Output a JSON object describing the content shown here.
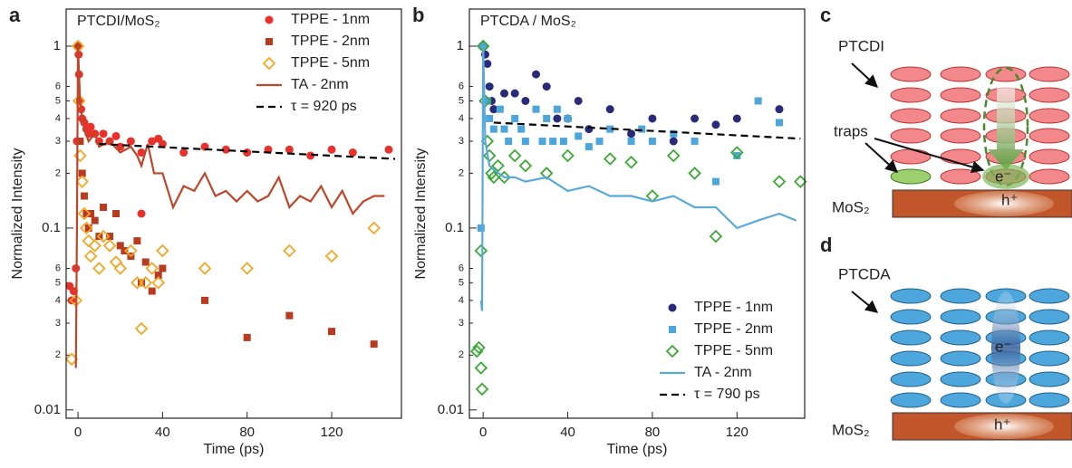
{
  "chart_data": [
    {
      "type": "scatter",
      "panel_label": "a",
      "title": "PTCDI/MoS₂",
      "x_label": "Time (ps)",
      "y_label": "Normalized Intensity",
      "log_y": true,
      "legend": "upper right",
      "xlim": [
        -5.6,
        153
      ],
      "ylim": [
        0.009,
        1.6
      ],
      "xticks": [
        0,
        40,
        80,
        120
      ],
      "yticks": [
        0.01,
        {
          "value": 0.02,
          "label": "2"
        },
        {
          "value": 0.03,
          "label": "3"
        },
        {
          "value": 0.04,
          "label": "4"
        },
        {
          "value": 0.05,
          "label": "5"
        },
        {
          "value": 0.06,
          "label": "6"
        },
        0.1,
        {
          "value": 0.2,
          "label": "2"
        },
        {
          "value": 0.3,
          "label": "3"
        },
        {
          "value": 0.4,
          "label": "4"
        },
        {
          "value": 0.5,
          "label": "5"
        },
        {
          "value": 0.6,
          "label": "6"
        },
        1
      ],
      "series": [
        {
          "name": "TPPE - 1nm",
          "color": "#e8312a",
          "marker": "circle",
          "x": [
            -4,
            -3,
            -2,
            -1,
            -0.5,
            0,
            0.3,
            0.5,
            1,
            1.5,
            2,
            3,
            4,
            5,
            6,
            8,
            10,
            12,
            15,
            18,
            20,
            25,
            30,
            30,
            35,
            38,
            40,
            50,
            60,
            70,
            80,
            90,
            100,
            110,
            120,
            130,
            147
          ],
          "values": [
            0.048,
            0.04,
            0.045,
            0.06,
            0.3,
            1,
            0.9,
            0.7,
            0.5,
            0.45,
            0.4,
            0.38,
            0.35,
            0.33,
            0.36,
            0.33,
            0.3,
            0.33,
            0.3,
            0.32,
            0.28,
            0.3,
            0.26,
            0.12,
            0.3,
            0.31,
            0.29,
            0.26,
            0.28,
            0.27,
            0.26,
            0.27,
            0.27,
            0.25,
            0.27,
            0.26,
            0.27
          ]
        },
        {
          "name": "TPPE - 2nm",
          "color": "#b83b1f",
          "marker": "square",
          "x": [
            0,
            1,
            2,
            3,
            4,
            5,
            6,
            8,
            10,
            12,
            15,
            18,
            20,
            22,
            25,
            28,
            30,
            32,
            35,
            38,
            40,
            60,
            80,
            100,
            120,
            140
          ],
          "values": [
            1,
            0.3,
            0.2,
            0.15,
            0.12,
            0.1,
            0.12,
            0.11,
            0.09,
            0.13,
            0.09,
            0.12,
            0.08,
            0.075,
            0.07,
            0.085,
            0.05,
            0.065,
            0.045,
            0.055,
            0.06,
            0.04,
            0.025,
            0.033,
            0.027,
            0.023
          ]
        },
        {
          "name": "TPPE - 5nm",
          "color": "#f5a623",
          "marker": "diamond",
          "x": [
            -3,
            -1,
            0,
            0.5,
            1,
            2,
            3,
            4,
            5,
            6,
            8,
            10,
            12,
            15,
            18,
            20,
            25,
            28,
            30,
            32,
            35,
            38,
            40,
            60,
            80,
            100,
            120,
            140
          ],
          "values": [
            0.019,
            0.04,
            1,
            0.5,
            0.25,
            0.18,
            0.12,
            0.1,
            0.085,
            0.07,
            0.08,
            0.06,
            0.09,
            0.08,
            0.065,
            0.06,
            0.075,
            0.05,
            0.028,
            0.05,
            0.06,
            0.05,
            0.075,
            0.06,
            0.06,
            0.075,
            0.07,
            0.1
          ]
        },
        {
          "name": "TA - 2nm",
          "color": "#c0462a",
          "marker": "line",
          "x": [
            -1,
            -0.5,
            0,
            0.5,
            1,
            2,
            3,
            5,
            8,
            10,
            15,
            20,
            25,
            28,
            30,
            33,
            36,
            40,
            45,
            50,
            55,
            60,
            65,
            70,
            75,
            80,
            85,
            90,
            95,
            100,
            105,
            110,
            115,
            120,
            125,
            130,
            135,
            140,
            145
          ],
          "values": [
            0.017,
            0.1,
            1,
            0.7,
            0.5,
            0.4,
            0.35,
            0.3,
            0.33,
            0.28,
            0.3,
            0.26,
            0.28,
            0.25,
            0.22,
            0.29,
            0.2,
            0.2,
            0.13,
            0.17,
            0.16,
            0.2,
            0.15,
            0.16,
            0.14,
            0.16,
            0.14,
            0.15,
            0.19,
            0.13,
            0.15,
            0.14,
            0.17,
            0.13,
            0.16,
            0.12,
            0.14,
            0.15,
            0.15
          ]
        },
        {
          "name": "τ = 920 ps",
          "color": "#000000",
          "marker": "dashed",
          "x": [
            10,
            150
          ],
          "values": [
            0.29,
            0.24
          ]
        }
      ]
    },
    {
      "type": "scatter",
      "panel_label": "b",
      "title": "PTCDA / MoS₂",
      "x_label": "Time (ps)",
      "y_label": "Normalized Intensity",
      "log_y": true,
      "legend": "lower right",
      "xlim": [
        -6.5,
        152
      ],
      "ylim": [
        0.009,
        1.6
      ],
      "xticks": [
        0,
        40,
        80,
        120
      ],
      "yticks": [
        0.01,
        {
          "value": 0.02,
          "label": "2"
        },
        {
          "value": 0.03,
          "label": "3"
        },
        {
          "value": 0.04,
          "label": "4"
        },
        {
          "value": 0.05,
          "label": "5"
        },
        {
          "value": 0.06,
          "label": "6"
        },
        0.1,
        {
          "value": 0.2,
          "label": "2"
        },
        {
          "value": 0.3,
          "label": "3"
        },
        {
          "value": 0.4,
          "label": "4"
        },
        {
          "value": 0.5,
          "label": "5"
        },
        {
          "value": 0.6,
          "label": "6"
        },
        1
      ],
      "series": [
        {
          "name": "TPPE - 1nm",
          "color": "#2a2a7a",
          "marker": "circle",
          "x": [
            0,
            1,
            2,
            3,
            4,
            5,
            10,
            15,
            20,
            25,
            30,
            35,
            40,
            45,
            50,
            60,
            70,
            80,
            90,
            100,
            110,
            120,
            140
          ],
          "values": [
            1,
            0.9,
            0.8,
            0.6,
            0.5,
            0.45,
            0.55,
            0.55,
            0.5,
            0.7,
            0.6,
            0.4,
            0.4,
            0.5,
            0.35,
            0.45,
            0.33,
            0.4,
            0.3,
            0.4,
            0.37,
            0.4,
            0.45
          ]
        },
        {
          "name": "TPPE - 2nm",
          "color": "#4ca6dc",
          "marker": "square",
          "x": [
            -1,
            0,
            2,
            3,
            5,
            8,
            10,
            12,
            15,
            18,
            20,
            25,
            28,
            30,
            33,
            35,
            38,
            40,
            45,
            50,
            55,
            60,
            70,
            75,
            80,
            90,
            100,
            110,
            120,
            130,
            140
          ],
          "values": [
            0.1,
            1,
            0.5,
            0.4,
            0.35,
            0.45,
            0.35,
            0.3,
            0.4,
            0.35,
            0.3,
            0.45,
            0.3,
            0.4,
            0.3,
            0.45,
            0.3,
            0.4,
            0.32,
            0.28,
            0.3,
            0.35,
            0.3,
            0.35,
            0.3,
            0.33,
            0.3,
            0.18,
            0.25,
            0.5,
            0.38
          ]
        },
        {
          "name": "TPPE - 5nm",
          "color": "#3aaa35",
          "marker": "diamond",
          "x": [
            -3,
            -2,
            -1,
            -1,
            -0.5,
            0,
            1,
            2,
            3,
            4,
            5,
            7,
            10,
            15,
            20,
            30,
            40,
            60,
            70,
            80,
            90,
            100,
            110,
            120,
            140,
            150
          ],
          "values": [
            0.021,
            0.022,
            0.075,
            0.017,
            0.013,
            1,
            0.5,
            0.3,
            0.25,
            0.2,
            0.19,
            0.22,
            0.19,
            0.25,
            0.22,
            0.2,
            0.25,
            0.24,
            0.23,
            0.15,
            0.25,
            0.2,
            0.09,
            0.26,
            0.18,
            0.18
          ]
        },
        {
          "name": "TA - 2nm",
          "color": "#5aa9dc",
          "marker": "line",
          "x": [
            -1,
            -0.5,
            0,
            1,
            3,
            5,
            10,
            15,
            20,
            30,
            40,
            50,
            60,
            70,
            80,
            90,
            100,
            110,
            120,
            130,
            140,
            148
          ],
          "values": [
            0.04,
            0.035,
            1,
            0.3,
            0.22,
            0.21,
            0.19,
            0.19,
            0.18,
            0.19,
            0.16,
            0.17,
            0.15,
            0.15,
            0.14,
            0.15,
            0.13,
            0.13,
            0.1,
            0.11,
            0.12,
            0.11
          ]
        },
        {
          "name": "τ = 790 ps",
          "color": "#000000",
          "marker": "dashed",
          "x": [
            5,
            150
          ],
          "values": [
            0.38,
            0.31
          ]
        }
      ]
    }
  ],
  "diagram_c": {
    "panel_label": "c",
    "molecule": "PTCDI",
    "traps": "traps",
    "electron": "e⁻",
    "hole": "h⁺",
    "substrate": "MoS₂"
  },
  "diagram_d": {
    "panel_label": "d",
    "molecule": "PTCDA",
    "electron": "e⁻",
    "hole": "h⁺",
    "substrate": "MoS₂"
  }
}
